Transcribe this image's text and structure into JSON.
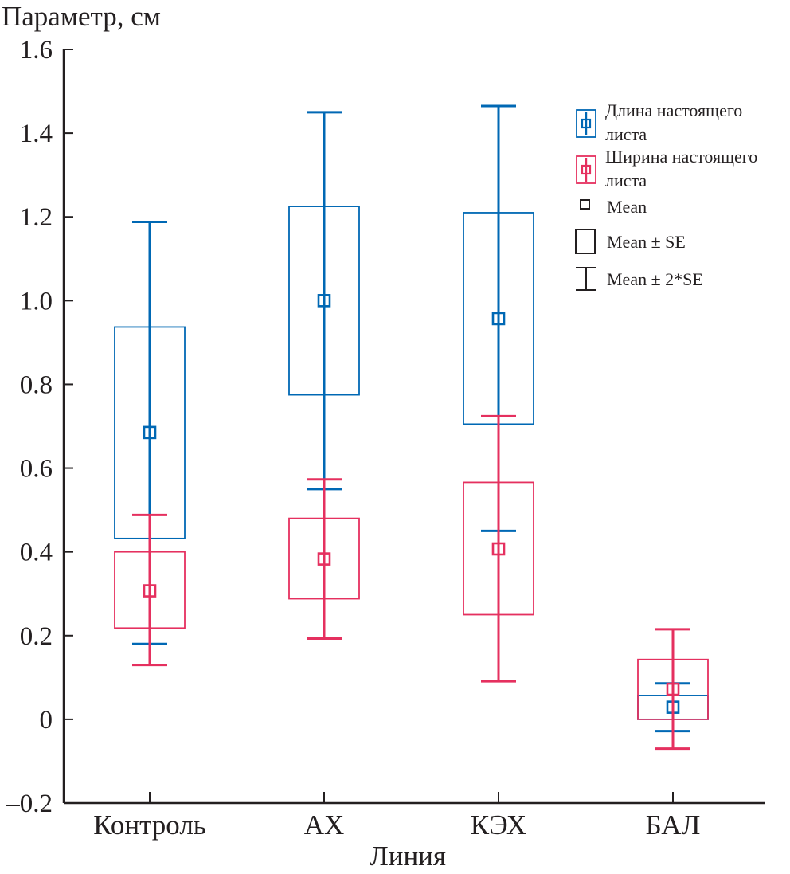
{
  "chart_data": {
    "type": "boxplot",
    "title": "",
    "ylabel": "Параметр, см",
    "xlabel": "Линия",
    "ylim": [
      -0.2,
      1.6
    ],
    "yticks": [
      -0.2,
      0,
      0.2,
      0.4,
      0.6,
      0.8,
      1.0,
      1.2,
      1.4,
      1.6
    ],
    "ytick_labels": [
      "–0.2",
      "0",
      "0.2",
      "0.4",
      "0.6",
      "0.8",
      "1.0",
      "1.2",
      "1.4",
      "1.6"
    ],
    "categories": [
      "Контроль",
      "АХ",
      "КЭХ",
      "БАЛ"
    ],
    "grid": false,
    "legend_position": "top-right",
    "series": [
      {
        "name": "Длина настоящего листа",
        "legend_lines": [
          "Длина настоящего",
          "листа"
        ],
        "color": "#0068b4",
        "mean": [
          0.685,
          1.0,
          0.957,
          0.029
        ],
        "se_low": [
          0.432,
          0.775,
          0.705,
          0.0
        ],
        "se_high": [
          0.937,
          1.225,
          1.21,
          0.057
        ],
        "se2_low": [
          0.18,
          0.55,
          0.45,
          -0.028
        ],
        "se2_high": [
          1.188,
          1.45,
          1.465,
          0.086
        ]
      },
      {
        "name": "Ширина настоящего листа",
        "legend_lines": [
          "Ширина настоящего",
          "листа"
        ],
        "color": "#e5305f",
        "mean": [
          0.307,
          0.383,
          0.407,
          0.072
        ],
        "se_low": [
          0.218,
          0.288,
          0.25,
          0.0
        ],
        "se_high": [
          0.4,
          0.48,
          0.566,
          0.143
        ],
        "se2_low": [
          0.13,
          0.193,
          0.091,
          -0.07
        ],
        "se2_high": [
          0.488,
          0.573,
          0.724,
          0.215
        ]
      }
    ],
    "legend_keys": {
      "mean": "Mean",
      "se": "Mean ± SE",
      "se2": "Mean ± 2*SE"
    }
  }
}
